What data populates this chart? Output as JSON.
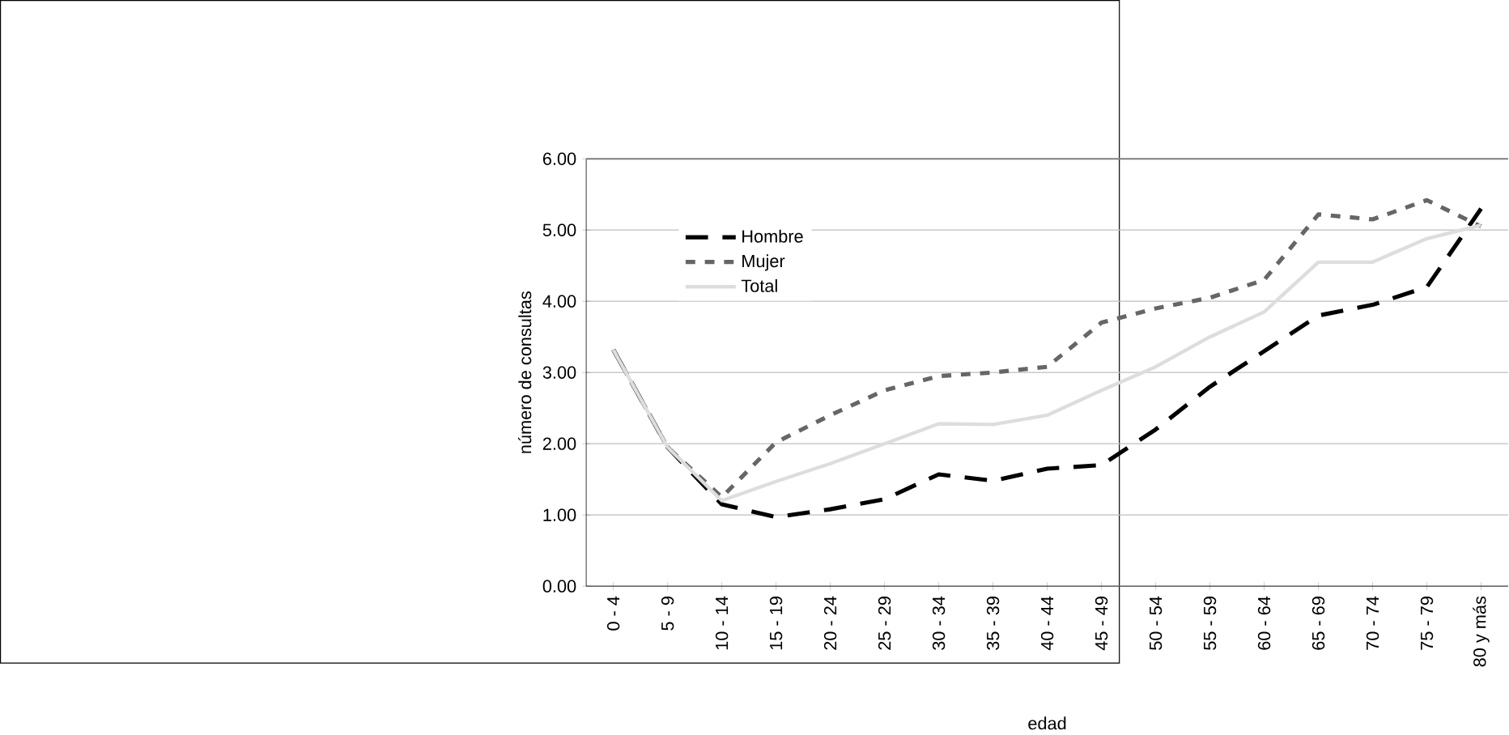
{
  "chart_data": {
    "type": "line",
    "xlabel": "edad",
    "ylabel": "número de consultas",
    "categories": [
      "0 - 4",
      "5 - 9",
      "10 - 14",
      "15 - 19",
      "20 - 24",
      "25 - 29",
      "30 - 34",
      "35 - 39",
      "40 - 44",
      "45 - 49",
      "50 - 54",
      "55 - 59",
      "60 - 64",
      "65 - 69",
      "70 - 74",
      "75 - 79",
      "80 y más"
    ],
    "series": [
      {
        "name": "Hombre",
        "color": "#000000",
        "line_style": "dashed",
        "values": [
          3.32,
          1.95,
          1.15,
          0.97,
          1.08,
          1.22,
          1.57,
          1.48,
          1.65,
          1.7,
          2.2,
          2.8,
          3.3,
          3.8,
          3.95,
          4.2,
          5.3
        ]
      },
      {
        "name": "Mujer",
        "color": "#666666",
        "line_style": "dotted",
        "values": [
          3.32,
          1.95,
          1.25,
          2.02,
          2.4,
          2.75,
          2.95,
          3.0,
          3.08,
          3.7,
          3.9,
          4.05,
          4.3,
          5.22,
          5.15,
          5.42,
          5.05
        ]
      },
      {
        "name": "Total",
        "color": "#dddddd",
        "line_style": "solid",
        "values": [
          3.32,
          1.95,
          1.2,
          1.47,
          1.72,
          2.0,
          2.28,
          2.27,
          2.4,
          2.75,
          3.08,
          3.5,
          3.85,
          4.55,
          4.55,
          4.88,
          5.07
        ]
      }
    ],
    "ylim": [
      0,
      6
    ],
    "yticks": [
      {
        "value": 0,
        "label": "0.00"
      },
      {
        "value": 1,
        "label": "1.00"
      },
      {
        "value": 2,
        "label": "2.00"
      },
      {
        "value": 3,
        "label": "3.00"
      },
      {
        "value": 4,
        "label": "4.00"
      },
      {
        "value": 5,
        "label": "5.00"
      },
      {
        "value": 6,
        "label": "6.00"
      }
    ],
    "grid": "y",
    "legend": "top left"
  }
}
